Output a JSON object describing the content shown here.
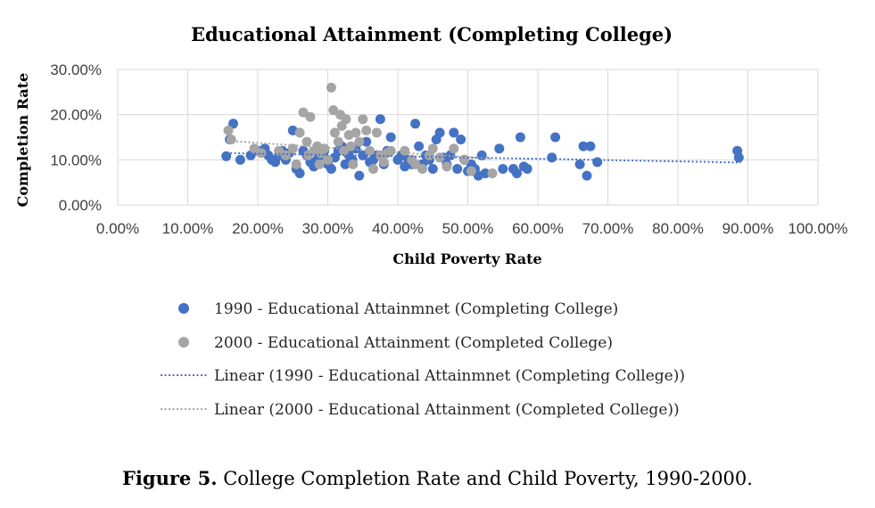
{
  "chart_data": {
    "type": "scatter",
    "title": "Educational Attainment (Completing College)",
    "xlabel": "Child Poverty Rate",
    "ylabel": "Completion Rate",
    "xlim": [
      0,
      100
    ],
    "ylim": [
      0,
      30
    ],
    "x_ticks": [
      "0.00%",
      "10.00%",
      "20.00%",
      "30.00%",
      "40.00%",
      "50.00%",
      "60.00%",
      "70.00%",
      "80.00%",
      "90.00%",
      "100.00%"
    ],
    "y_ticks": [
      "0.00%",
      "10.00%",
      "20.00%",
      "30.00%"
    ],
    "series": [
      {
        "name": "1990 - Educational Attainmnet (Completing College)",
        "color": "#4472c4",
        "points": [
          [
            15.5,
            10.8
          ],
          [
            16,
            14.5
          ],
          [
            16.5,
            18
          ],
          [
            17.5,
            10
          ],
          [
            19,
            11
          ],
          [
            20,
            12
          ],
          [
            21,
            12.5
          ],
          [
            21.5,
            11
          ],
          [
            22,
            10
          ],
          [
            22.5,
            9.5
          ],
          [
            23,
            11
          ],
          [
            23.5,
            12
          ],
          [
            24,
            10
          ],
          [
            24.5,
            11.5
          ],
          [
            25,
            16.5
          ],
          [
            25.5,
            8
          ],
          [
            26,
            7
          ],
          [
            26.5,
            12
          ],
          [
            27,
            11
          ],
          [
            27.5,
            9.5
          ],
          [
            28,
            8.5
          ],
          [
            28.5,
            10
          ],
          [
            29,
            11
          ],
          [
            29.5,
            12
          ],
          [
            30,
            9
          ],
          [
            30.5,
            8
          ],
          [
            31,
            10.5
          ],
          [
            31.5,
            12
          ],
          [
            32,
            13
          ],
          [
            32.5,
            9
          ],
          [
            33,
            11
          ],
          [
            33.5,
            10
          ],
          [
            34,
            12.5
          ],
          [
            34.5,
            6.5
          ],
          [
            35,
            11
          ],
          [
            35.5,
            14
          ],
          [
            36,
            9.5
          ],
          [
            36.5,
            10
          ],
          [
            37,
            11
          ],
          [
            37.5,
            19
          ],
          [
            38,
            9
          ],
          [
            38.5,
            12
          ],
          [
            39,
            15
          ],
          [
            40,
            10
          ],
          [
            40.5,
            11
          ],
          [
            41,
            8.5
          ],
          [
            41.5,
            10
          ],
          [
            42,
            9
          ],
          [
            42.5,
            18
          ],
          [
            43,
            13
          ],
          [
            43.5,
            9
          ],
          [
            44,
            11
          ],
          [
            44.5,
            10
          ],
          [
            45,
            8
          ],
          [
            45.5,
            14.5
          ],
          [
            46,
            16
          ],
          [
            46.5,
            10.5
          ],
          [
            47,
            9
          ],
          [
            47.5,
            11
          ],
          [
            48,
            16
          ],
          [
            48.5,
            8
          ],
          [
            49,
            14.5
          ],
          [
            49.5,
            10
          ],
          [
            50,
            7.5
          ],
          [
            50.5,
            9
          ],
          [
            51,
            8
          ],
          [
            51.5,
            6.5
          ],
          [
            52,
            11
          ],
          [
            52.5,
            7
          ],
          [
            54.5,
            12.5
          ],
          [
            55,
            8
          ],
          [
            56.5,
            8
          ],
          [
            57,
            7
          ],
          [
            57.5,
            15
          ],
          [
            58,
            8.5
          ],
          [
            58.5,
            8
          ],
          [
            62,
            10.5
          ],
          [
            62.5,
            15
          ],
          [
            66,
            9
          ],
          [
            66.5,
            13
          ],
          [
            67,
            6.5
          ],
          [
            67.5,
            13
          ],
          [
            68.5,
            9.5
          ],
          [
            88.5,
            12
          ],
          [
            88.7,
            10.5
          ]
        ]
      },
      {
        "name": "2000 - Educational Attainment (Completed College)",
        "color": "#a5a5a5",
        "points": [
          [
            15.8,
            16.5
          ],
          [
            16.2,
            14.5
          ],
          [
            19.5,
            12.5
          ],
          [
            20.5,
            11.5
          ],
          [
            23,
            12
          ],
          [
            24,
            11
          ],
          [
            25,
            12.5
          ],
          [
            25.5,
            9
          ],
          [
            26,
            16
          ],
          [
            26.5,
            20.5
          ],
          [
            27,
            14
          ],
          [
            27.2,
            11
          ],
          [
            27.5,
            19.5
          ],
          [
            28,
            12
          ],
          [
            28.5,
            13
          ],
          [
            28.8,
            9
          ],
          [
            29,
            11.5
          ],
          [
            29.5,
            12.5
          ],
          [
            30,
            10
          ],
          [
            30.5,
            26
          ],
          [
            30.8,
            21
          ],
          [
            31,
            16
          ],
          [
            31.5,
            14
          ],
          [
            31.8,
            20
          ],
          [
            32,
            17.5
          ],
          [
            32.3,
            12
          ],
          [
            32.6,
            19
          ],
          [
            33,
            15.5
          ],
          [
            33.3,
            13
          ],
          [
            33.6,
            9
          ],
          [
            34,
            16
          ],
          [
            34.5,
            14
          ],
          [
            35,
            19
          ],
          [
            35.5,
            16.5
          ],
          [
            36,
            12
          ],
          [
            36.5,
            8
          ],
          [
            37,
            16
          ],
          [
            37.5,
            11
          ],
          [
            38,
            9.5
          ],
          [
            38.5,
            11.5
          ],
          [
            39,
            12
          ],
          [
            41,
            12
          ],
          [
            42,
            10
          ],
          [
            42.5,
            9
          ],
          [
            43.5,
            8
          ],
          [
            44.5,
            11
          ],
          [
            45,
            12.5
          ],
          [
            46,
            10.5
          ],
          [
            47,
            8.5
          ],
          [
            48,
            12.5
          ],
          [
            49.5,
            10
          ],
          [
            50.5,
            7.5
          ],
          [
            53.5,
            7
          ]
        ]
      }
    ],
    "trendlines": [
      {
        "name": "Linear (1990 - Educational Attainmnet (Completing College))",
        "color": "#4472c4",
        "from": [
          15.5,
          11.5
        ],
        "to": [
          89,
          9.4
        ]
      },
      {
        "name": "Linear (2000 - Educational Attainment (Completed College))",
        "color": "#a5a5a5",
        "from": [
          15.8,
          14.2
        ],
        "to": [
          53.5,
          10.2
        ]
      }
    ],
    "legend": [
      {
        "label": "1990 - Educational Attainmnet (Completing College)",
        "kind": "marker",
        "color": "#4472c4"
      },
      {
        "label": "2000 - Educational Attainment (Completed College)",
        "kind": "marker",
        "color": "#a5a5a5"
      },
      {
        "label": "Linear (1990 - Educational Attainmnet (Completing College))",
        "kind": "line",
        "color": "#4472c4"
      },
      {
        "label": "Linear (2000 - Educational Attainment (Completed College))",
        "kind": "line",
        "color": "#a5a5a5"
      }
    ],
    "legend_position": "bottom"
  },
  "caption": {
    "label": "Figure 5.",
    "text": " College Completion Rate and Child Poverty, 1990-2000."
  }
}
